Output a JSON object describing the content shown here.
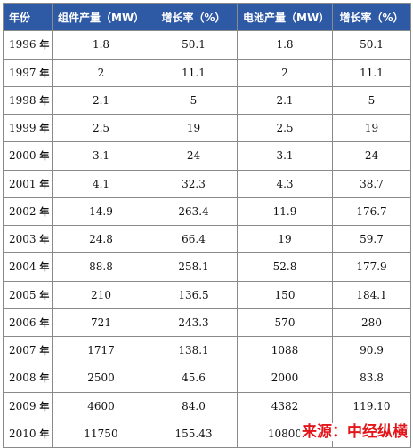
{
  "table": {
    "headers": [
      "年份",
      "组件产量（MW）",
      "增长率（%）",
      "电池产量（MW）",
      "增长率（%）"
    ],
    "year_suffix": "年",
    "rows": [
      {
        "year": "1996",
        "module": "1.8",
        "module_growth": "50.1",
        "cell": "1.8",
        "cell_growth": "50.1"
      },
      {
        "year": "1997",
        "module": "2",
        "module_growth": "11.1",
        "cell": "2",
        "cell_growth": "11.1"
      },
      {
        "year": "1998",
        "module": "2.1",
        "module_growth": "5",
        "cell": "2.1",
        "cell_growth": "5"
      },
      {
        "year": "1999",
        "module": "2.5",
        "module_growth": "19",
        "cell": "2.5",
        "cell_growth": "19"
      },
      {
        "year": "2000",
        "module": "3.1",
        "module_growth": "24",
        "cell": "3.1",
        "cell_growth": "24"
      },
      {
        "year": "2001",
        "module": "4.1",
        "module_growth": "32.3",
        "cell": "4.3",
        "cell_growth": "38.7"
      },
      {
        "year": "2002",
        "module": "14.9",
        "module_growth": "263.4",
        "cell": "11.9",
        "cell_growth": "176.7"
      },
      {
        "year": "2003",
        "module": "24.8",
        "module_growth": "66.4",
        "cell": "19",
        "cell_growth": "59.7"
      },
      {
        "year": "2004",
        "module": "88.8",
        "module_growth": "258.1",
        "cell": "52.8",
        "cell_growth": "177.9"
      },
      {
        "year": "2005",
        "module": "210",
        "module_growth": "136.5",
        "cell": "150",
        "cell_growth": "184.1"
      },
      {
        "year": "2006",
        "module": "721",
        "module_growth": "243.3",
        "cell": "570",
        "cell_growth": "280"
      },
      {
        "year": "2007",
        "module": "1717",
        "module_growth": "138.1",
        "cell": "1088",
        "cell_growth": "90.9"
      },
      {
        "year": "2008",
        "module": "2500",
        "module_growth": "45.6",
        "cell": "2000",
        "cell_growth": "83.8"
      },
      {
        "year": "2009",
        "module": "4600",
        "module_growth": "84.0",
        "cell": "4382",
        "cell_growth": "119.10"
      },
      {
        "year": "2010",
        "module": "11750",
        "module_growth": "155.43",
        "cell": "10800",
        "cell_growth": ""
      }
    ]
  },
  "watermark": "来源：中经纵横",
  "colors": {
    "header_bg": "#2e5aa5",
    "header_text": "#ffffff",
    "watermark": "#e2161b",
    "grid": "#8a8a8a"
  }
}
